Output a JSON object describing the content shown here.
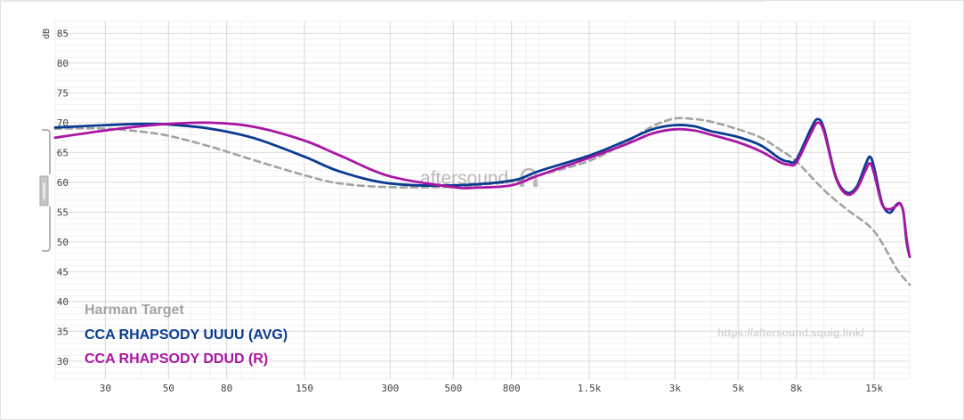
{
  "chart_data": {
    "type": "line",
    "ylabel": "dB",
    "x_scale": "log",
    "xlim": [
      20,
      20000
    ],
    "ylim": [
      27,
      87
    ],
    "y_ticks": [
      85,
      80,
      75,
      70,
      65,
      60,
      55,
      50,
      45,
      40,
      35,
      30
    ],
    "x_ticks": [
      {
        "value": 30,
        "label": "30"
      },
      {
        "value": 50,
        "label": "50"
      },
      {
        "value": 80,
        "label": "80"
      },
      {
        "value": 150,
        "label": "150"
      },
      {
        "value": 300,
        "label": "300"
      },
      {
        "value": 500,
        "label": "500"
      },
      {
        "value": 800,
        "label": "800"
      },
      {
        "value": 1500,
        "label": "1.5k"
      },
      {
        "value": 3000,
        "label": "3k"
      },
      {
        "value": 5000,
        "label": "5k"
      },
      {
        "value": 8000,
        "label": "8k"
      },
      {
        "value": 15000,
        "label": "15k"
      }
    ],
    "grid": true,
    "legend_position": "bottom-left",
    "series": [
      {
        "name": "Harman Target",
        "color": "#a3a3a3",
        "dashed": true,
        "points": [
          [
            20,
            69
          ],
          [
            30,
            69
          ],
          [
            40,
            68.5
          ],
          [
            50,
            67.8
          ],
          [
            70,
            66
          ],
          [
            100,
            63.7
          ],
          [
            150,
            61.2
          ],
          [
            200,
            59.8
          ],
          [
            300,
            59.2
          ],
          [
            500,
            59.3
          ],
          [
            800,
            60.1
          ],
          [
            1000,
            61.2
          ],
          [
            1500,
            63.6
          ],
          [
            2000,
            66.6
          ],
          [
            2500,
            69.4
          ],
          [
            3000,
            70.7
          ],
          [
            3500,
            70.6
          ],
          [
            4000,
            70.2
          ],
          [
            5000,
            68.9
          ],
          [
            6000,
            67.5
          ],
          [
            7000,
            65.5
          ],
          [
            8000,
            63.5
          ],
          [
            10000,
            58.7
          ],
          [
            12000,
            55.5
          ],
          [
            15000,
            51.8
          ],
          [
            18000,
            45.5
          ],
          [
            20000,
            42.8
          ]
        ]
      },
      {
        "name": "CCA RHAPSODY UUUU (AVG)",
        "color": "#0b3b91",
        "dashed": false,
        "points": [
          [
            20,
            69.2
          ],
          [
            30,
            69.6
          ],
          [
            40,
            69.8
          ],
          [
            50,
            69.7
          ],
          [
            70,
            69
          ],
          [
            100,
            67.4
          ],
          [
            150,
            64.3
          ],
          [
            200,
            61.8
          ],
          [
            300,
            59.8
          ],
          [
            500,
            59.5
          ],
          [
            800,
            60.3
          ],
          [
            1000,
            61.9
          ],
          [
            1500,
            64.5
          ],
          [
            2000,
            66.9
          ],
          [
            2500,
            68.9
          ],
          [
            3000,
            69.6
          ],
          [
            3500,
            69.4
          ],
          [
            4000,
            68.6
          ],
          [
            5000,
            67.6
          ],
          [
            6000,
            66.2
          ],
          [
            7000,
            64
          ],
          [
            7500,
            63.5
          ],
          [
            8000,
            63.8
          ],
          [
            9000,
            69
          ],
          [
            9500,
            70.6
          ],
          [
            10000,
            69
          ],
          [
            11000,
            61
          ],
          [
            12000,
            58.3
          ],
          [
            13000,
            59.2
          ],
          [
            14000,
            63
          ],
          [
            14500,
            64.3
          ],
          [
            15000,
            62.5
          ],
          [
            16000,
            56.5
          ],
          [
            17000,
            54.9
          ],
          [
            18000,
            56.3
          ],
          [
            18500,
            56.4
          ],
          [
            19000,
            55
          ],
          [
            19500,
            50
          ],
          [
            20000,
            47.5
          ]
        ]
      },
      {
        "name": "CCA RHAPSODY DDUD (R)",
        "color": "#aa16a4",
        "dashed": false,
        "points": [
          [
            20,
            67.5
          ],
          [
            30,
            68.7
          ],
          [
            40,
            69.4
          ],
          [
            50,
            69.8
          ],
          [
            70,
            70
          ],
          [
            100,
            69.3
          ],
          [
            150,
            67
          ],
          [
            200,
            64.5
          ],
          [
            300,
            61
          ],
          [
            500,
            59.2
          ],
          [
            600,
            59.1
          ],
          [
            800,
            59.5
          ],
          [
            1000,
            61.2
          ],
          [
            1500,
            64.1
          ],
          [
            2000,
            66.3
          ],
          [
            2500,
            68.2
          ],
          [
            3000,
            68.9
          ],
          [
            3500,
            68.7
          ],
          [
            4000,
            68
          ],
          [
            5000,
            66.7
          ],
          [
            6000,
            65.2
          ],
          [
            7000,
            63.4
          ],
          [
            7500,
            63
          ],
          [
            8000,
            63.3
          ],
          [
            9000,
            68.2
          ],
          [
            9500,
            70
          ],
          [
            10000,
            68.5
          ],
          [
            11000,
            60.8
          ],
          [
            12000,
            58
          ],
          [
            13000,
            58.8
          ],
          [
            14000,
            62
          ],
          [
            14500,
            63.2
          ],
          [
            15000,
            61.5
          ],
          [
            16000,
            56.3
          ],
          [
            17000,
            55.5
          ],
          [
            18000,
            56.1
          ],
          [
            18500,
            56.5
          ],
          [
            19000,
            55
          ],
          [
            19500,
            50.5
          ],
          [
            20000,
            47.5
          ]
        ]
      }
    ]
  },
  "watermark": {
    "url": "https://aftersound.squig.link/",
    "logo": "aftersound"
  }
}
